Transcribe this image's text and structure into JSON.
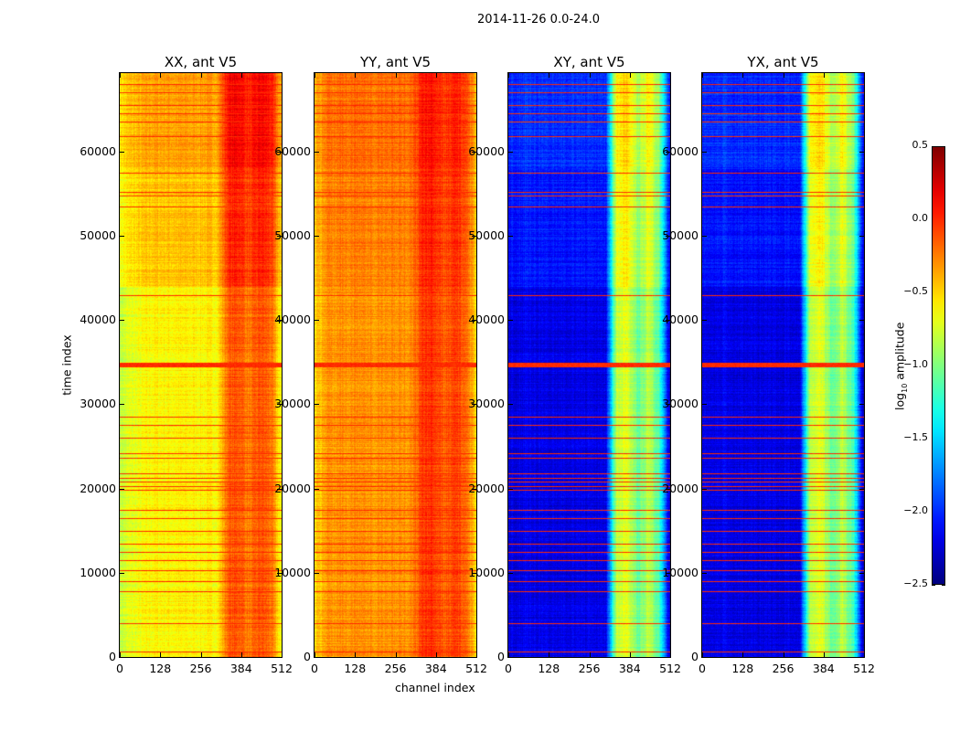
{
  "chart_data": {
    "type": "heatmap",
    "title": "2014-11-26 0.0-24.0",
    "xlabel": "channel index",
    "ylabel": "time index",
    "xlim": [
      0,
      512
    ],
    "ylim": [
      0,
      69300
    ],
    "xticks": [
      "0",
      "128",
      "256",
      "384",
      "512"
    ],
    "yticks": [
      "0",
      "10000",
      "20000",
      "30000",
      "40000",
      "50000",
      "60000"
    ],
    "colormap": "jet",
    "colorbar": {
      "label_prefix": "log",
      "label_sub": "10",
      "label_suffix": " amplitude",
      "range": [
        -2.5,
        0.5
      ],
      "ticks": [
        "0.5",
        "0.0",
        "−0.5",
        "−1.0",
        "−1.5",
        "−2.0",
        "−2.5"
      ],
      "tick_values": [
        0.5,
        0.0,
        -0.5,
        -1.0,
        -1.5,
        -2.0,
        -2.5
      ]
    },
    "panels": [
      {
        "title": "XX, ant V5",
        "channel_profile": [
          -0.8,
          -0.7,
          -0.65,
          -0.6,
          -0.6,
          -0.6,
          -0.6,
          -0.6,
          -0.6,
          -0.6,
          -0.15,
          -0.1,
          -0.25,
          -0.1,
          -0.2,
          -0.7
        ],
        "upper_offset": 0.25,
        "show_ylabel": true
      },
      {
        "title": "YY, ant V5",
        "channel_profile": [
          -0.5,
          -0.35,
          -0.3,
          -0.3,
          -0.3,
          -0.3,
          -0.3,
          -0.3,
          -0.3,
          -0.3,
          -0.05,
          0.0,
          -0.15,
          -0.05,
          -0.15,
          -0.55
        ],
        "upper_offset": 0.1,
        "show_ylabel": false
      },
      {
        "title": "XY, ant V5",
        "channel_profile": [
          -2.2,
          -2.2,
          -2.15,
          -2.2,
          -2.2,
          -2.2,
          -2.2,
          -2.2,
          -2.2,
          -2.2,
          -0.8,
          -0.7,
          -1.1,
          -0.8,
          -1.2,
          -2.4
        ],
        "upper_offset": 0.2,
        "show_ylabel": false
      },
      {
        "title": "YX, ant V5",
        "channel_profile": [
          -2.2,
          -2.2,
          -2.15,
          -2.2,
          -2.2,
          -2.2,
          -2.2,
          -2.2,
          -2.2,
          -2.2,
          -0.8,
          -0.7,
          -1.1,
          -0.8,
          -1.2,
          -2.4
        ],
        "upper_offset": 0.2,
        "show_ylabel": false
      }
    ],
    "flagged_rows": [
      600,
      4000,
      7800,
      9000,
      10300,
      11500,
      12500,
      13500,
      15000,
      16500,
      17500,
      19800,
      20300,
      20800,
      21300,
      21800,
      23600,
      24200,
      26000,
      27500,
      28500,
      34700,
      43000,
      53500,
      54800,
      55200,
      57500,
      61800,
      63500,
      64500,
      65500,
      67000,
      68000
    ],
    "flag_value": 0.0
  }
}
